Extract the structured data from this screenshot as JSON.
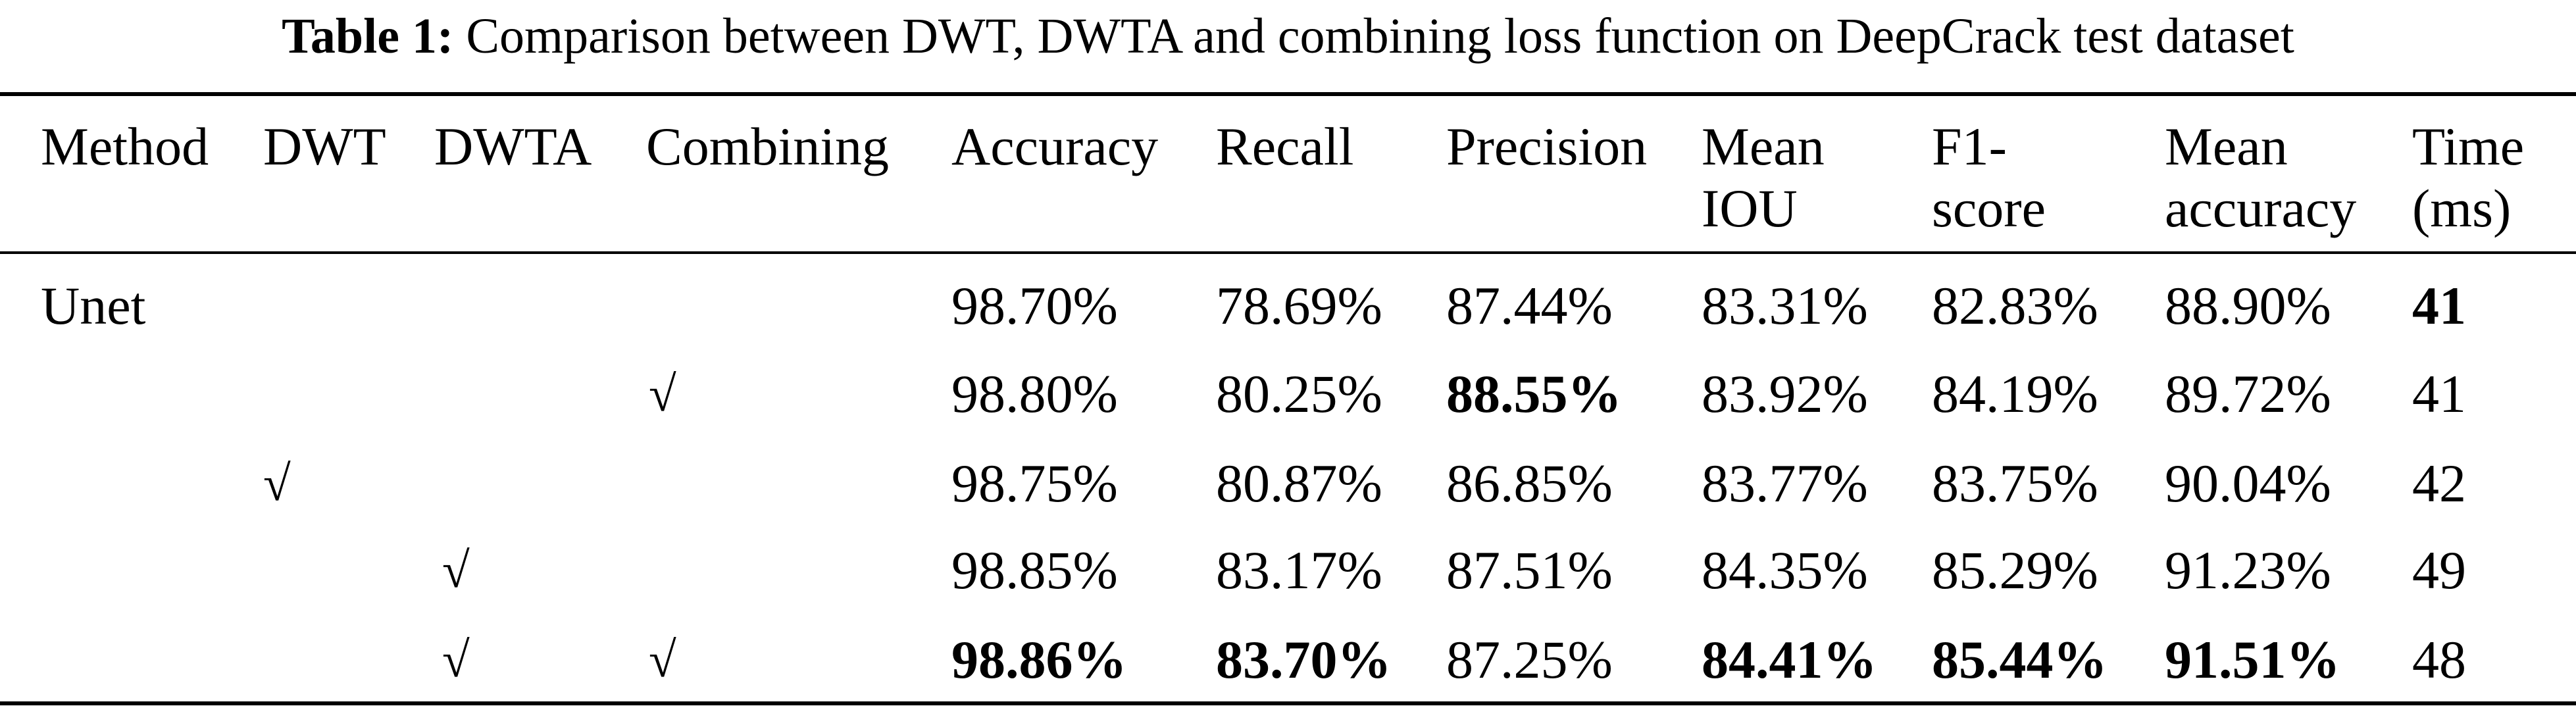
{
  "caption": {
    "label": "Table 1:",
    "text": "Comparison between DWT, DWTA and combining loss function on DeepCrack test dataset"
  },
  "header": {
    "method": "Method",
    "dwt": "DWT",
    "dwta": "DWTA",
    "combining": "Combining",
    "accuracy": "Accuracy",
    "recall": "Recall",
    "precision": "Precision",
    "mean_iou_1": "Mean",
    "mean_iou_2": "IOU",
    "f1_1": "F1-",
    "f1_2": "score",
    "mean_acc_1": "Mean",
    "mean_acc_2": "accuracy",
    "time_1": "Time",
    "time_2": "(ms)"
  },
  "check_mark": "√",
  "rows": [
    {
      "method": "Unet",
      "dwt": "",
      "dwta": "",
      "combining": "",
      "accuracy": "98.70%",
      "recall": "78.69%",
      "precision": "87.44%",
      "mean_iou": "83.31%",
      "f1": "82.83%",
      "mean_accuracy": "88.90%",
      "time": "41"
    },
    {
      "method": "",
      "dwt": "",
      "dwta": "",
      "combining": "√",
      "accuracy": "98.80%",
      "recall": "80.25%",
      "precision": "88.55%",
      "mean_iou": "83.92%",
      "f1": "84.19%",
      "mean_accuracy": "89.72%",
      "time": "41"
    },
    {
      "method": "",
      "dwt": "√",
      "dwta": "",
      "combining": "",
      "accuracy": "98.75%",
      "recall": "80.87%",
      "precision": "86.85%",
      "mean_iou": "83.77%",
      "f1": "83.75%",
      "mean_accuracy": "90.04%",
      "time": "42"
    },
    {
      "method": "",
      "dwt": "",
      "dwta": "√",
      "combining": "",
      "accuracy": "98.85%",
      "recall": "83.17%",
      "precision": "87.51%",
      "mean_iou": "84.35%",
      "f1": "85.29%",
      "mean_accuracy": "91.23%",
      "time": "49"
    },
    {
      "method": "",
      "dwt": "",
      "dwta": "√",
      "combining": "√",
      "accuracy": "98.86%",
      "recall": "83.70%",
      "precision": "87.25%",
      "mean_iou": "84.41%",
      "f1": "85.44%",
      "mean_accuracy": "91.51%",
      "time": "48"
    }
  ]
}
